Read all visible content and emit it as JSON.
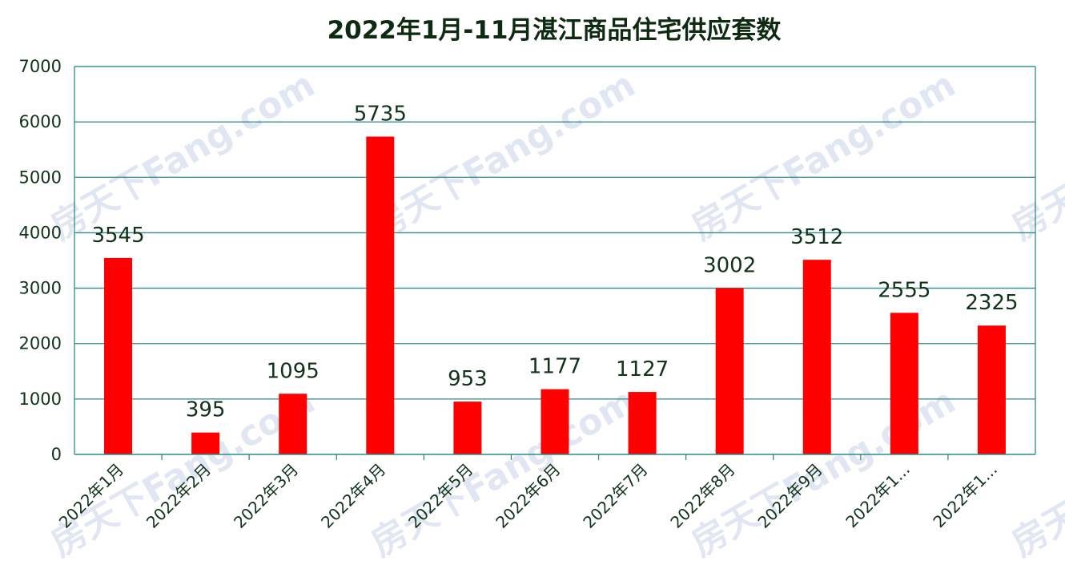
{
  "chart_data": {
    "type": "bar",
    "title": "2022年1月-11月湛江商品住宅供应套数",
    "categories": [
      "2022年1月",
      "2022年2月",
      "2022年3月",
      "2022年4月",
      "2022年5月",
      "2022年6月",
      "2022年7月",
      "2022年8月",
      "2022年9月",
      "2022年1...",
      "2022年1..."
    ],
    "values": [
      3545,
      395,
      1095,
      5735,
      953,
      1177,
      1127,
      3002,
      3512,
      2555,
      2325
    ],
    "ylim": [
      0,
      7000
    ],
    "yticks": [
      "0",
      "1000",
      "2000",
      "3000",
      "4000",
      "5000",
      "6000",
      "7000"
    ],
    "grid": true,
    "bar_color": "#ff0000",
    "grid_color": "#2e8b8b",
    "watermark": "房天下Fang.com"
  }
}
